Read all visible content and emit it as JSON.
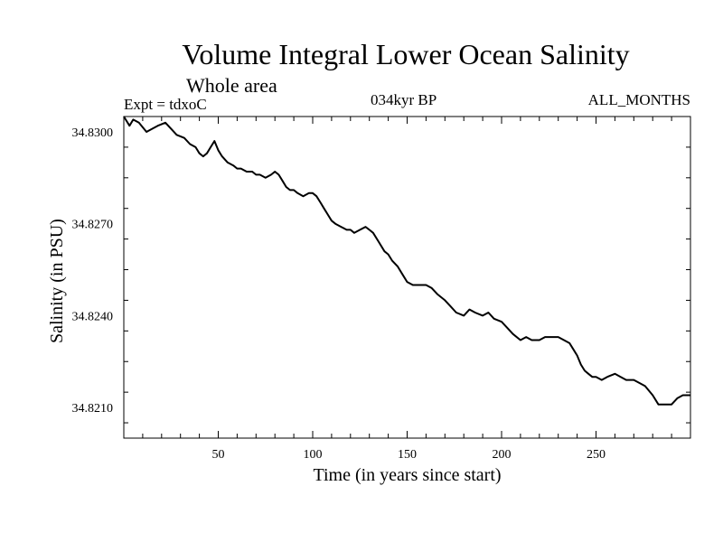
{
  "header": {
    "title": "Volume Integral Lower Ocean Salinity",
    "subtitle": "Whole area",
    "expt": "Expt = tdxoC",
    "period": "034kyr BP",
    "months": "ALL_MONTHS"
  },
  "chart_data": {
    "type": "line",
    "title": "Volume Integral Lower Ocean Salinity",
    "subtitle": "Whole area",
    "xlabel": "Time (in years since start)",
    "ylabel": "Salinity (in PSU)",
    "xlim": [
      0,
      300
    ],
    "ylim": [
      34.82,
      34.8305
    ],
    "xticks": [
      50,
      100,
      150,
      200,
      250
    ],
    "xticklabels": [
      "50",
      "100",
      "150",
      "200",
      "250"
    ],
    "yticks": [
      34.821,
      34.824,
      34.827,
      34.83
    ],
    "yticklabels": [
      "34.8210",
      "34.8240",
      "34.8270",
      "34.8300"
    ],
    "grid": false,
    "series": [
      {
        "color": "#000000",
        "x": [
          0,
          3,
          5,
          8,
          12,
          15,
          18,
          22,
          25,
          28,
          32,
          35,
          38,
          40,
          42,
          44,
          46,
          48,
          50,
          52,
          55,
          58,
          60,
          62,
          65,
          68,
          70,
          72,
          75,
          78,
          80,
          82,
          84,
          86,
          88,
          90,
          92,
          95,
          98,
          100,
          102,
          104,
          106,
          108,
          110,
          112,
          115,
          118,
          120,
          122,
          125,
          128,
          130,
          132,
          135,
          138,
          140,
          142,
          145,
          148,
          150,
          153,
          156,
          160,
          163,
          166,
          170,
          173,
          176,
          180,
          183,
          186,
          190,
          193,
          196,
          200,
          203,
          206,
          210,
          213,
          216,
          220,
          223,
          226,
          230,
          233,
          236,
          238,
          240,
          242,
          244,
          246,
          248,
          250,
          253,
          256,
          260,
          263,
          266,
          270,
          273,
          276,
          280,
          283,
          286,
          290,
          293,
          296,
          300
        ],
        "values": [
          34.8305,
          34.8302,
          34.8304,
          34.8303,
          34.83,
          34.8301,
          34.8302,
          34.8303,
          34.8301,
          34.8299,
          34.8298,
          34.8296,
          34.8295,
          34.8293,
          34.8292,
          34.8293,
          34.8295,
          34.8297,
          34.8294,
          34.8292,
          34.829,
          34.8289,
          34.8288,
          34.8288,
          34.8287,
          34.8287,
          34.8286,
          34.8286,
          34.8285,
          34.8286,
          34.8287,
          34.8286,
          34.8284,
          34.8282,
          34.8281,
          34.8281,
          34.828,
          34.8279,
          34.828,
          34.828,
          34.8279,
          34.8277,
          34.8275,
          34.8273,
          34.8271,
          34.827,
          34.8269,
          34.8268,
          34.8268,
          34.8267,
          34.8268,
          34.8269,
          34.8268,
          34.8267,
          34.8264,
          34.8261,
          34.826,
          34.8258,
          34.8256,
          34.8253,
          34.8251,
          34.825,
          34.825,
          34.825,
          34.8249,
          34.8247,
          34.8245,
          34.8243,
          34.8241,
          34.824,
          34.8242,
          34.8241,
          34.824,
          34.8241,
          34.8239,
          34.8238,
          34.8236,
          34.8234,
          34.8232,
          34.8233,
          34.8232,
          34.8232,
          34.8233,
          34.8233,
          34.8233,
          34.8232,
          34.8231,
          34.8229,
          34.8227,
          34.8224,
          34.8222,
          34.8221,
          34.822,
          34.822,
          34.8219,
          34.822,
          34.8221,
          34.822,
          34.8219,
          34.8219,
          34.8218,
          34.8217,
          34.8214,
          34.8211,
          34.8211,
          34.8211,
          34.8213,
          34.8214,
          34.8214
        ]
      }
    ]
  }
}
